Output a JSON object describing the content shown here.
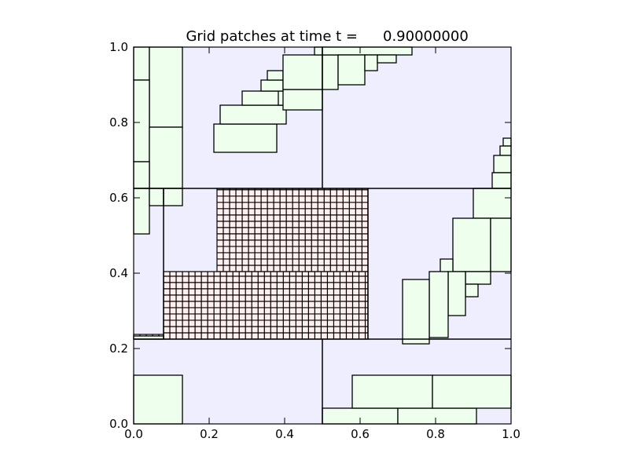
{
  "colors": {
    "background": "#eeeeff",
    "level2_patch": "#eeffee",
    "level3_patch": "#ffeeee",
    "edge": "#000000"
  },
  "chart_data": {
    "type": "patch-grid",
    "title_prefix": "Grid patches at time t =",
    "title_value": "0.90000000",
    "xlim": [
      0.0,
      1.0
    ],
    "ylim": [
      0.0,
      1.0
    ],
    "xticks": [
      "0.0",
      "0.2",
      "0.4",
      "0.6",
      "0.8",
      "1.0"
    ],
    "yticks": [
      "0.0",
      "0.2",
      "0.4",
      "0.6",
      "0.8",
      "1.0"
    ],
    "level1_dividers": {
      "horizontal": [
        0.625,
        0.225
      ],
      "vertical": [
        {
          "x": 0.5,
          "y0": 0.625,
          "y1": 1.0
        },
        {
          "x": 0.5,
          "y0": 0.0,
          "y1": 0.225
        },
        {
          "x": 0.0792,
          "y0": 0.225,
          "y1": 0.625
        },
        {
          "x": 0.6208,
          "y0": 0.225,
          "y1": 0.625
        }
      ]
    },
    "level2_patches": [
      [
        0.0,
        0.9125,
        0.0417,
        1.0
      ],
      [
        0.0417,
        0.7875,
        0.1292,
        1.0
      ],
      [
        0.0,
        0.6958,
        0.0417,
        0.9125
      ],
      [
        0.0417,
        0.625,
        0.1292,
        0.7875
      ],
      [
        0.0,
        0.625,
        0.0417,
        0.6958
      ],
      [
        0.2125,
        0.7208,
        0.3792,
        0.7958
      ],
      [
        0.2292,
        0.7958,
        0.4042,
        0.8458
      ],
      [
        0.2875,
        0.8458,
        0.3958,
        0.8833
      ],
      [
        0.3833,
        0.8458,
        0.4208,
        0.8833
      ],
      [
        0.3958,
        0.8333,
        0.5,
        0.8875
      ],
      [
        0.3375,
        0.8833,
        0.3958,
        0.9125
      ],
      [
        0.3542,
        0.9125,
        0.3958,
        0.9375
      ],
      [
        0.3958,
        0.8875,
        0.5,
        0.9792
      ],
      [
        0.4792,
        0.9792,
        0.5,
        1.0
      ],
      [
        0.5,
        0.8875,
        0.5417,
        0.9792
      ],
      [
        0.5,
        0.9792,
        0.7375,
        1.0
      ],
      [
        0.5417,
        0.9,
        0.6125,
        0.9792
      ],
      [
        0.6125,
        0.9375,
        0.6458,
        0.9792
      ],
      [
        0.6458,
        0.9583,
        0.6958,
        0.9792
      ],
      [
        0.9792,
        0.7375,
        1.0,
        0.7583
      ],
      [
        0.9708,
        0.7125,
        1.0,
        0.7375
      ],
      [
        0.9542,
        0.6667,
        1.0,
        0.7125
      ],
      [
        0.95,
        0.625,
        1.0,
        0.6667
      ],
      [
        0.0,
        0.5042,
        0.0417,
        0.625
      ],
      [
        0.0417,
        0.5792,
        0.0792,
        0.625
      ],
      [
        0.0792,
        0.5792,
        0.1292,
        0.625
      ],
      [
        0.0,
        0.225,
        0.0792,
        0.2333
      ],
      [
        0.9,
        0.5458,
        1.0,
        0.625
      ],
      [
        0.8458,
        0.4042,
        0.9458,
        0.5458
      ],
      [
        0.9458,
        0.4042,
        1.0,
        0.5458
      ],
      [
        0.8125,
        0.3958,
        0.8458,
        0.4375
      ],
      [
        0.8792,
        0.3708,
        0.9458,
        0.4042
      ],
      [
        0.8792,
        0.3375,
        0.9125,
        0.3708
      ],
      [
        0.8333,
        0.2875,
        0.8792,
        0.4042
      ],
      [
        0.7833,
        0.2292,
        0.8333,
        0.4042
      ],
      [
        0.7125,
        0.2125,
        0.7833,
        0.3833
      ],
      [
        0.0,
        0.0,
        0.1292,
        0.1292
      ],
      [
        0.5,
        0.0,
        0.7,
        0.0417
      ],
      [
        0.7,
        0.0,
        0.9083,
        0.0417
      ],
      [
        0.5792,
        0.0417,
        0.7917,
        0.1292
      ],
      [
        0.7917,
        0.0417,
        1.0,
        0.1292
      ]
    ],
    "level3_regions": [
      {
        "x0": 0.2208,
        "y0": 0.4042,
        "x1": 0.6208,
        "y1": 0.625
      },
      {
        "x0": 0.0792,
        "y0": 0.225,
        "x1": 0.6208,
        "y1": 0.4042
      },
      {
        "x0": 0.0,
        "y0": 0.225,
        "x1": 0.0792,
        "y1": 0.2375
      }
    ],
    "level3_cell_size": 0.0167
  }
}
